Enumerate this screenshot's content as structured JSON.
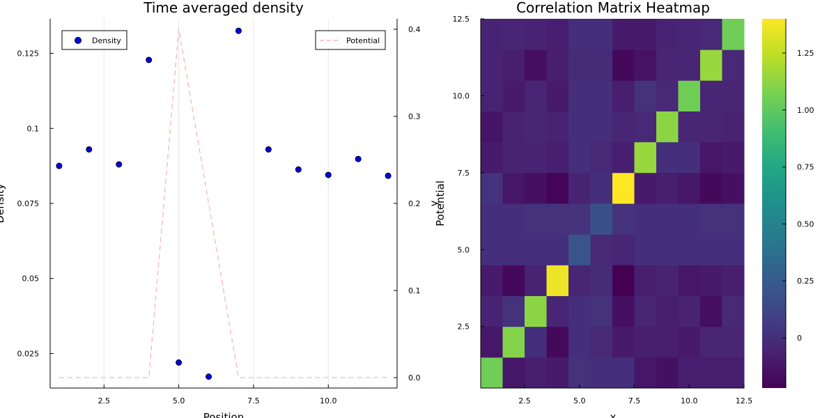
{
  "chart_data": [
    {
      "type": "scatter",
      "title": "Time averaged density",
      "xlabel": "Position",
      "ylabel": "Density",
      "y2label": "Potential",
      "xlim": [
        0.7,
        12.3
      ],
      "ylim": [
        0.0135,
        0.1365
      ],
      "y2lim": [
        -0.012,
        0.412
      ],
      "xticks": [
        2.5,
        5.0,
        7.5,
        10.0
      ],
      "yticks": [
        0.025,
        0.05,
        0.075,
        0.1,
        0.125
      ],
      "y2ticks": [
        0.0,
        0.1,
        0.2,
        0.3,
        0.4
      ],
      "grid": "vertical",
      "series": [
        {
          "name": "Density",
          "axis": "left",
          "kind": "scatter",
          "color": "#0000ee",
          "x": [
            1,
            2,
            3,
            4,
            5,
            6,
            7,
            8,
            9,
            10,
            11,
            12
          ],
          "y": [
            0.0875,
            0.093,
            0.088,
            0.1228,
            0.022,
            0.0173,
            0.1325,
            0.093,
            0.0863,
            0.0845,
            0.0898,
            0.0842
          ]
        },
        {
          "name": "Potential",
          "axis": "right",
          "kind": "line",
          "style": "dashed",
          "color": "#ffb3b3",
          "x": [
            1,
            2,
            3,
            4,
            5,
            6,
            7,
            8,
            9,
            10,
            11,
            12
          ],
          "y": [
            0,
            0,
            0,
            0,
            0.4,
            0.2,
            0,
            0,
            0,
            0,
            0,
            0
          ]
        }
      ],
      "legend_left": {
        "label": "Density",
        "placement": "top-left"
      },
      "legend_right": {
        "label": "Potential",
        "placement": "top-right"
      }
    },
    {
      "type": "heatmap",
      "title": "Correlation Matrix Heatmap",
      "xlabel": "x",
      "ylabel": "y",
      "xlim": [
        0.5,
        12.5
      ],
      "ylim": [
        0.5,
        12.5
      ],
      "xticks": [
        2.5,
        5.0,
        7.5,
        10.0,
        12.5
      ],
      "yticks": [
        2.5,
        5.0,
        7.5,
        10.0,
        12.5
      ],
      "clim": [
        -0.22,
        1.4
      ],
      "colorbar_ticks": [
        0,
        0.25,
        0.5,
        0.75,
        1.0,
        1.25
      ],
      "colormap": "viridis",
      "values": [
        [
          1.05,
          -0.12,
          -0.08,
          -0.1,
          0.02,
          0.0,
          0.0,
          -0.12,
          -0.15,
          -0.08,
          -0.08,
          -0.08
        ],
        [
          -0.12,
          1.1,
          0.0,
          -0.18,
          0.0,
          -0.03,
          -0.1,
          -0.08,
          -0.08,
          -0.1,
          -0.05,
          -0.05
        ],
        [
          -0.06,
          0.02,
          1.12,
          -0.05,
          0.0,
          0.02,
          -0.15,
          -0.05,
          -0.08,
          -0.06,
          -0.16,
          -0.03
        ],
        [
          -0.1,
          -0.18,
          -0.06,
          1.36,
          -0.05,
          -0.02,
          -0.22,
          -0.08,
          -0.06,
          -0.12,
          -0.1,
          -0.08
        ],
        [
          0.0,
          0.0,
          0.0,
          0.0,
          0.2,
          -0.03,
          -0.05,
          0.0,
          0.0,
          0.0,
          0.0,
          0.0
        ],
        [
          0.0,
          0.0,
          0.02,
          0.02,
          0.02,
          0.18,
          0.02,
          0.0,
          0.0,
          0.0,
          0.02,
          0.02
        ],
        [
          0.02,
          -0.12,
          -0.15,
          -0.2,
          -0.06,
          0.0,
          1.4,
          -0.1,
          -0.08,
          -0.12,
          -0.18,
          -0.15
        ],
        [
          -0.1,
          -0.06,
          -0.06,
          -0.08,
          0.0,
          -0.03,
          -0.08,
          1.15,
          0.0,
          0.0,
          -0.12,
          -0.1
        ],
        [
          -0.13,
          -0.06,
          -0.05,
          -0.06,
          0.0,
          0.0,
          -0.05,
          -0.03,
          1.12,
          -0.05,
          -0.05,
          -0.06
        ],
        [
          -0.06,
          -0.1,
          -0.05,
          -0.1,
          0.0,
          0.0,
          -0.08,
          0.02,
          -0.03,
          1.05,
          -0.05,
          -0.05
        ],
        [
          -0.06,
          -0.08,
          -0.16,
          -0.08,
          -0.02,
          -0.02,
          -0.18,
          -0.14,
          -0.05,
          -0.05,
          1.15,
          -0.03
        ],
        [
          -0.06,
          -0.05,
          -0.06,
          -0.08,
          0.0,
          0.0,
          -0.1,
          -0.1,
          -0.06,
          -0.05,
          -0.03,
          1.05
        ]
      ]
    }
  ]
}
